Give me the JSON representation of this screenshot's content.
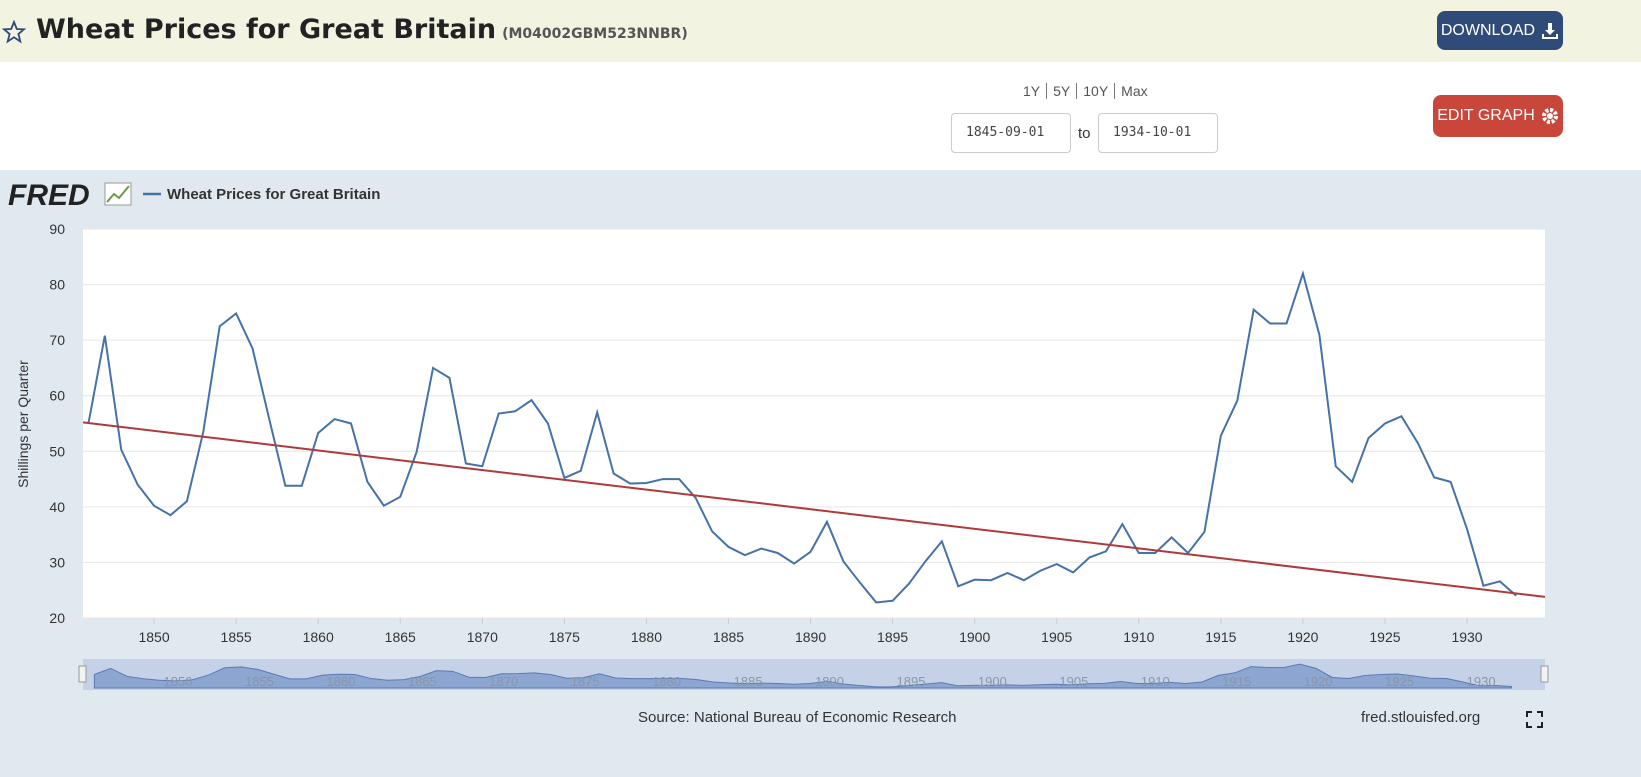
{
  "header": {
    "title": "Wheat Prices for Great Britain",
    "series_id": "(M04002GBM523NNBR)",
    "download": "DOWNLOAD"
  },
  "controls": {
    "ranges": [
      "1Y",
      "5Y",
      "10Y",
      "Max"
    ],
    "start": "1845-09-01",
    "to": "to",
    "end": "1934-10-01",
    "edit": "EDIT GRAPH"
  },
  "chart_data": {
    "type": "line",
    "logo": "FRED",
    "y_label": "Shillings per Quarter",
    "x": [
      1846,
      1847,
      1848,
      1849,
      1850,
      1851,
      1852,
      1853,
      1854,
      1855,
      1856,
      1857,
      1858,
      1859,
      1860,
      1861,
      1862,
      1863,
      1864,
      1865,
      1866,
      1867,
      1868,
      1869,
      1870,
      1871,
      1872,
      1873,
      1874,
      1875,
      1876,
      1877,
      1878,
      1879,
      1880,
      1881,
      1882,
      1883,
      1884,
      1885,
      1886,
      1887,
      1888,
      1889,
      1890,
      1891,
      1892,
      1893,
      1894,
      1895,
      1896,
      1897,
      1898,
      1899,
      1900,
      1901,
      1902,
      1903,
      1904,
      1905,
      1906,
      1907,
      1908,
      1909,
      1910,
      1911,
      1912,
      1913,
      1914,
      1915,
      1916,
      1917,
      1918,
      1919,
      1920,
      1921,
      1922,
      1923,
      1924,
      1925,
      1926,
      1927,
      1928,
      1929,
      1930,
      1931,
      1932,
      1933
    ],
    "series": [
      {
        "name": "Wheat Prices for Great Britain",
        "color": "#4572a7",
        "values": [
          55,
          70.8,
          50.3,
          44,
          40.2,
          38.5,
          41,
          53.5,
          72.5,
          74.8,
          68.5,
          56,
          43.8,
          43.8,
          53.3,
          55.8,
          55,
          44.5,
          40.2,
          41.8,
          49.9,
          65,
          63.2,
          47.8,
          47.3,
          56.8,
          57.2,
          59.2,
          55,
          45.2,
          46.5,
          57,
          46,
          44.2,
          44.3,
          45,
          45,
          41.6,
          35.6,
          32.8,
          31.3,
          32.5,
          31.7,
          29.8,
          31.9,
          37.3,
          30.2,
          26.4,
          22.8,
          23.1,
          26.2,
          30.2,
          33.8,
          25.7,
          26.9,
          26.8,
          28.1,
          26.8,
          28.5,
          29.7,
          28.2,
          30.9,
          32,
          36.9,
          31.7,
          31.7,
          34.5,
          31.7,
          35.5,
          52.8,
          59.1,
          75.5,
          73,
          73,
          82,
          71,
          47.3,
          44.5,
          52.4,
          55,
          56.3,
          51.5,
          45.3,
          44.5,
          36,
          25.8,
          26.6,
          24
        ]
      }
    ],
    "trend": {
      "color": "#b0393a",
      "x": [
        1845.67,
        1934.75
      ],
      "values": [
        55.2,
        23.8
      ]
    },
    "xlim": [
      1845.67,
      1934.75
    ],
    "xticks": [
      1850,
      1855,
      1860,
      1865,
      1870,
      1875,
      1880,
      1885,
      1890,
      1895,
      1900,
      1905,
      1910,
      1915,
      1920,
      1925,
      1930
    ],
    "ylim": [
      20,
      90
    ],
    "yticks": [
      20,
      30,
      40,
      50,
      60,
      70,
      80,
      90
    ],
    "grid": true,
    "source": "Source: National Bureau of Economic Research",
    "site": "fred.stlouisfed.org"
  }
}
